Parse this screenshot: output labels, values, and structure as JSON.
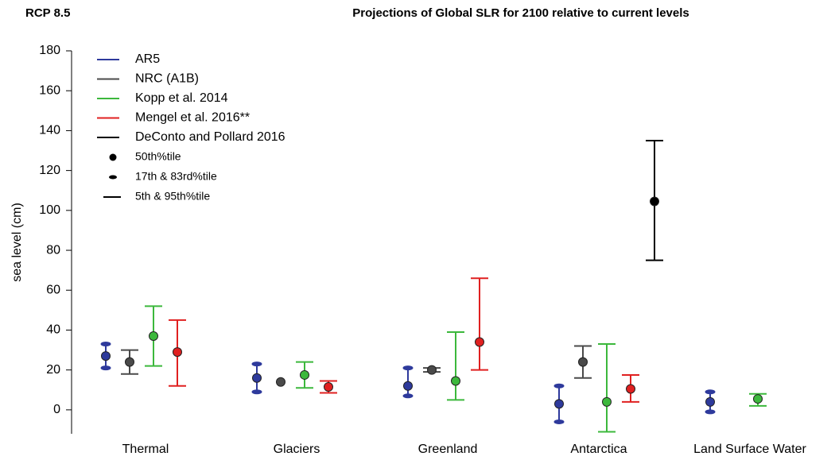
{
  "chart_data": {
    "type": "errorbar",
    "subtitle": "RCP 8.5",
    "title": "Projections of Global SLR for 2100 relative to current levels",
    "y_label": "sea level (cm)",
    "categories": [
      "Thermal",
      "Glaciers",
      "Greenland",
      "Antarctica",
      "Land Surface Water"
    ],
    "ylim": [
      -12,
      180
    ],
    "yticks": [
      0,
      20,
      40,
      60,
      80,
      100,
      120,
      140,
      160,
      180
    ],
    "series": [
      {
        "name": "AR5",
        "color": "#2e3a9c",
        "cap": "ellipse",
        "values": [
          27,
          16,
          12,
          3,
          4
        ],
        "low": [
          21,
          9,
          7,
          -6,
          -1
        ],
        "high": [
          33,
          23,
          21,
          12,
          9
        ]
      },
      {
        "name": "NRC (A1B)",
        "color": "#4a4a4a",
        "cap": "line",
        "values": [
          24,
          14,
          20,
          24,
          null
        ],
        "low": [
          18,
          null,
          19,
          16,
          null
        ],
        "high": [
          30,
          null,
          21,
          32,
          null
        ]
      },
      {
        "name": "Kopp et al. 2014",
        "color": "#3cb83c",
        "cap": "line",
        "values": [
          37,
          17.5,
          14.5,
          4,
          5.5
        ],
        "low": [
          22,
          11,
          5,
          -11,
          2
        ],
        "high": [
          52,
          24,
          39,
          33,
          8
        ]
      },
      {
        "name": "Mengel et al. 2016**",
        "color": "#e02020",
        "cap": "line",
        "values": [
          29,
          11.5,
          34,
          10.5,
          null
        ],
        "low": [
          12,
          8.5,
          20,
          4,
          null
        ],
        "high": [
          45,
          14.5,
          66,
          17.5,
          null
        ]
      },
      {
        "name": "DeConto and Pollard 2016",
        "color": "#000000",
        "cap": "line",
        "values": [
          null,
          null,
          null,
          104.5,
          null
        ],
        "low": [
          null,
          null,
          null,
          75,
          null
        ],
        "high": [
          null,
          null,
          null,
          135,
          null
        ]
      }
    ],
    "legend_markers": [
      "50th%tile",
      "17th & 83rd%tile",
      "5th & 95th%tile"
    ]
  }
}
